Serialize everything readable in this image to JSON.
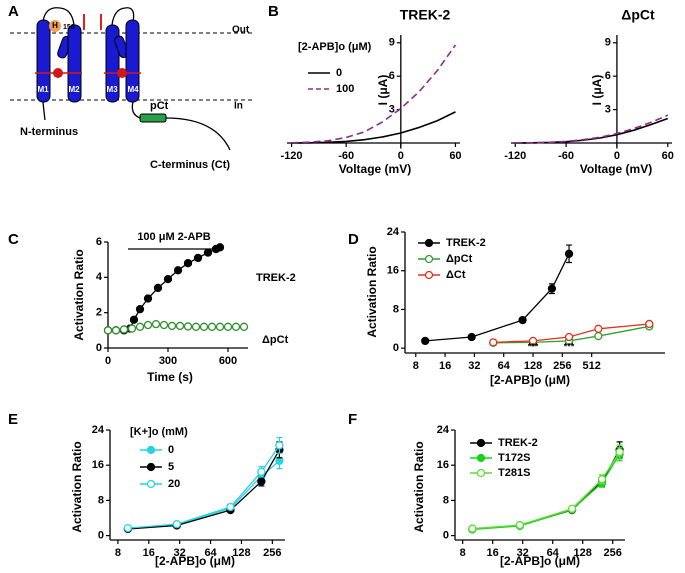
{
  "panel_labels": [
    "A",
    "B",
    "C",
    "D",
    "E",
    "F"
  ],
  "diagram": {
    "labels": [
      "Out",
      "In",
      "H",
      "156",
      "M1",
      "M2",
      "M3",
      "M4",
      "pCt",
      "N-terminus",
      "C-terminus (Ct)"
    ]
  },
  "chart_data": [
    {
      "type": "line",
      "title": "TREK-2",
      "x_label": "Voltage (mV)",
      "y_label": "I (μA)",
      "legend_title": "[2-APB]o (μM)",
      "xlim": [
        -125,
        65
      ],
      "ylim": [
        -0.5,
        9.7
      ],
      "xticks": [
        -120,
        -60,
        0,
        60
      ],
      "yticks": [
        3,
        6,
        9
      ],
      "x": [
        -120,
        -100,
        -80,
        -60,
        -40,
        -20,
        0,
        20,
        40,
        60
      ],
      "series": [
        {
          "name": "0",
          "color": "#000000",
          "values": [
            0.0,
            0.02,
            0.06,
            0.14,
            0.3,
            0.55,
            0.9,
            1.4,
            2.0,
            2.8
          ]
        },
        {
          "name": "100",
          "color": "#8e2a8e",
          "dash": true,
          "values": [
            0.02,
            0.08,
            0.2,
            0.5,
            1.0,
            1.9,
            3.1,
            4.6,
            6.5,
            8.8
          ]
        }
      ]
    },
    {
      "type": "line",
      "title": "ΔpCt",
      "x_label": "Voltage (mV)",
      "y_label": "I (μA)",
      "xlim": [
        -125,
        65
      ],
      "ylim": [
        -0.5,
        9.7
      ],
      "xticks": [
        -120,
        -60,
        0,
        60
      ],
      "yticks": [
        3,
        6,
        9
      ],
      "x": [
        -120,
        -100,
        -80,
        -60,
        -40,
        -20,
        0,
        20,
        40,
        60
      ],
      "series": [
        {
          "name": "0",
          "color": "#000000",
          "values": [
            0.0,
            0.02,
            0.05,
            0.12,
            0.25,
            0.45,
            0.75,
            1.15,
            1.65,
            2.2
          ]
        },
        {
          "name": "100",
          "color": "#8e2a8e",
          "dash": true,
          "values": [
            0.0,
            0.02,
            0.06,
            0.14,
            0.3,
            0.52,
            0.85,
            1.3,
            1.85,
            2.5
          ]
        }
      ]
    },
    {
      "type": "line",
      "x_label": "Time (s)",
      "y_label": "Activation Ratio",
      "annotation": {
        "text": "100 μM 2-APB",
        "x_range": [
          100,
          560
        ]
      },
      "xlim": [
        0,
        700
      ],
      "ylim": [
        0,
        6
      ],
      "xticks": [
        0,
        300,
        600
      ],
      "yticks": [
        0,
        2,
        4,
        6
      ],
      "series": [
        {
          "name": "TREK-2",
          "color": "#000000",
          "marker": "filled",
          "x": [
            0,
            40,
            80,
            110,
            130,
            160,
            200,
            250,
            300,
            350,
            400,
            450,
            500,
            540,
            560
          ],
          "values": [
            1,
            1,
            1,
            1.1,
            1.6,
            2.2,
            2.8,
            3.4,
            3.9,
            4.4,
            4.8,
            5.1,
            5.4,
            5.6,
            5.7
          ]
        },
        {
          "name": "ΔpCt",
          "color": "#2f8f2f",
          "marker": "open",
          "x": [
            0,
            40,
            80,
            120,
            160,
            200,
            240,
            280,
            320,
            360,
            400,
            440,
            480,
            520,
            560,
            600,
            640,
            680
          ],
          "values": [
            1,
            1,
            1.05,
            1.1,
            1.2,
            1.3,
            1.35,
            1.3,
            1.25,
            1.25,
            1.22,
            1.2,
            1.2,
            1.2,
            1.2,
            1.2,
            1.2,
            1.2
          ]
        }
      ]
    },
    {
      "type": "line",
      "x_label": "[2-APB]o (μM)",
      "y_label": "Activation Ratio",
      "log_x": true,
      "xlim": [
        6.2,
        2900
      ],
      "ylim": [
        -1,
        24
      ],
      "xticks": [
        8,
        16,
        32,
        64,
        128,
        256,
        512
      ],
      "yticks": [
        0,
        8,
        16,
        24
      ],
      "annotations": [
        {
          "text": "***",
          "x": 128,
          "y": 0.2
        },
        {
          "text": "***",
          "x": 300,
          "y": 0.2
        }
      ],
      "series": [
        {
          "name": "TREK-2",
          "color": "#000000",
          "marker": "filled",
          "x": [
            10,
            30,
            100,
            200,
            300
          ],
          "values": [
            1.5,
            2.3,
            5.8,
            12.3,
            19.5
          ],
          "errors": [
            0.3,
            0.3,
            0.5,
            1.0,
            1.8
          ]
        },
        {
          "name": "ΔpCt",
          "color": "#2e9e2e",
          "marker": "open",
          "x": [
            50,
            128,
            300,
            600,
            2000
          ],
          "values": [
            1.1,
            1.2,
            1.5,
            2.5,
            4.5
          ],
          "errors": [
            0.2,
            0.2,
            0.3,
            0.3,
            0.4
          ]
        },
        {
          "name": "ΔCt",
          "color": "#e0301e",
          "marker": "open",
          "x": [
            50,
            128,
            300,
            600,
            2000
          ],
          "values": [
            1.2,
            1.5,
            2.3,
            4.0,
            5.0
          ],
          "errors": [
            0.2,
            0.3,
            0.3,
            0.4,
            0.4
          ]
        }
      ]
    },
    {
      "type": "line",
      "x_label": "[2-APB]o (μM)",
      "y_label": "Activation Ratio",
      "log_x": true,
      "legend_title": "[K+]o (mM)",
      "xlim": [
        6.7,
        340
      ],
      "ylim": [
        -1,
        24
      ],
      "xticks": [
        8,
        16,
        32,
        64,
        128,
        256
      ],
      "yticks": [
        0,
        8,
        16,
        24
      ],
      "series": [
        {
          "name": "0",
          "color": "#27d3e3",
          "marker": "filled",
          "x": [
            10,
            30,
            100,
            200,
            300
          ],
          "values": [
            1.6,
            2.4,
            6.2,
            13.5,
            17.0
          ],
          "errors": [
            0.3,
            0.3,
            0.5,
            1.2,
            1.8
          ]
        },
        {
          "name": "5",
          "color": "#000000",
          "marker": "filled",
          "x": [
            10,
            30,
            100,
            200,
            300
          ],
          "values": [
            1.5,
            2.3,
            5.8,
            12.3,
            19.5
          ],
          "errors": [
            0.3,
            0.3,
            0.5,
            1.0,
            1.8
          ]
        },
        {
          "name": "20",
          "color": "#27d3e3",
          "marker": "open",
          "x": [
            10,
            30,
            100,
            200,
            300
          ],
          "values": [
            1.7,
            2.6,
            6.5,
            14.5,
            20.5
          ],
          "errors": [
            0.3,
            0.3,
            0.6,
            1.2,
            1.8
          ]
        }
      ]
    },
    {
      "type": "line",
      "x_label": "[2-APB]o (μM)",
      "y_label": "Activation Ratio",
      "log_x": true,
      "xlim": [
        6.7,
        340
      ],
      "ylim": [
        -1,
        24
      ],
      "xticks": [
        8,
        16,
        32,
        64,
        128,
        256
      ],
      "yticks": [
        0,
        8,
        16,
        24
      ],
      "series": [
        {
          "name": "TREK-2",
          "color": "#000000",
          "marker": "filled",
          "x": [
            10,
            30,
            100,
            200,
            300
          ],
          "values": [
            1.5,
            2.3,
            5.8,
            12.3,
            19.5
          ],
          "errors": [
            0.3,
            0.3,
            0.5,
            1.0,
            1.8
          ]
        },
        {
          "name": "T172S",
          "color": "#19d119",
          "marker": "filled",
          "x": [
            10,
            30,
            100,
            200,
            300
          ],
          "values": [
            1.4,
            2.2,
            5.9,
            12.0,
            18.5
          ],
          "errors": [
            0.3,
            0.3,
            0.5,
            1.0,
            1.5
          ]
        },
        {
          "name": "T281S",
          "color": "#5fdc3c",
          "marker": "open",
          "x": [
            10,
            30,
            100,
            200,
            300
          ],
          "values": [
            1.6,
            2.4,
            6.1,
            12.8,
            19.0
          ],
          "errors": [
            0.3,
            0.3,
            0.5,
            1.0,
            1.6
          ]
        }
      ]
    }
  ]
}
